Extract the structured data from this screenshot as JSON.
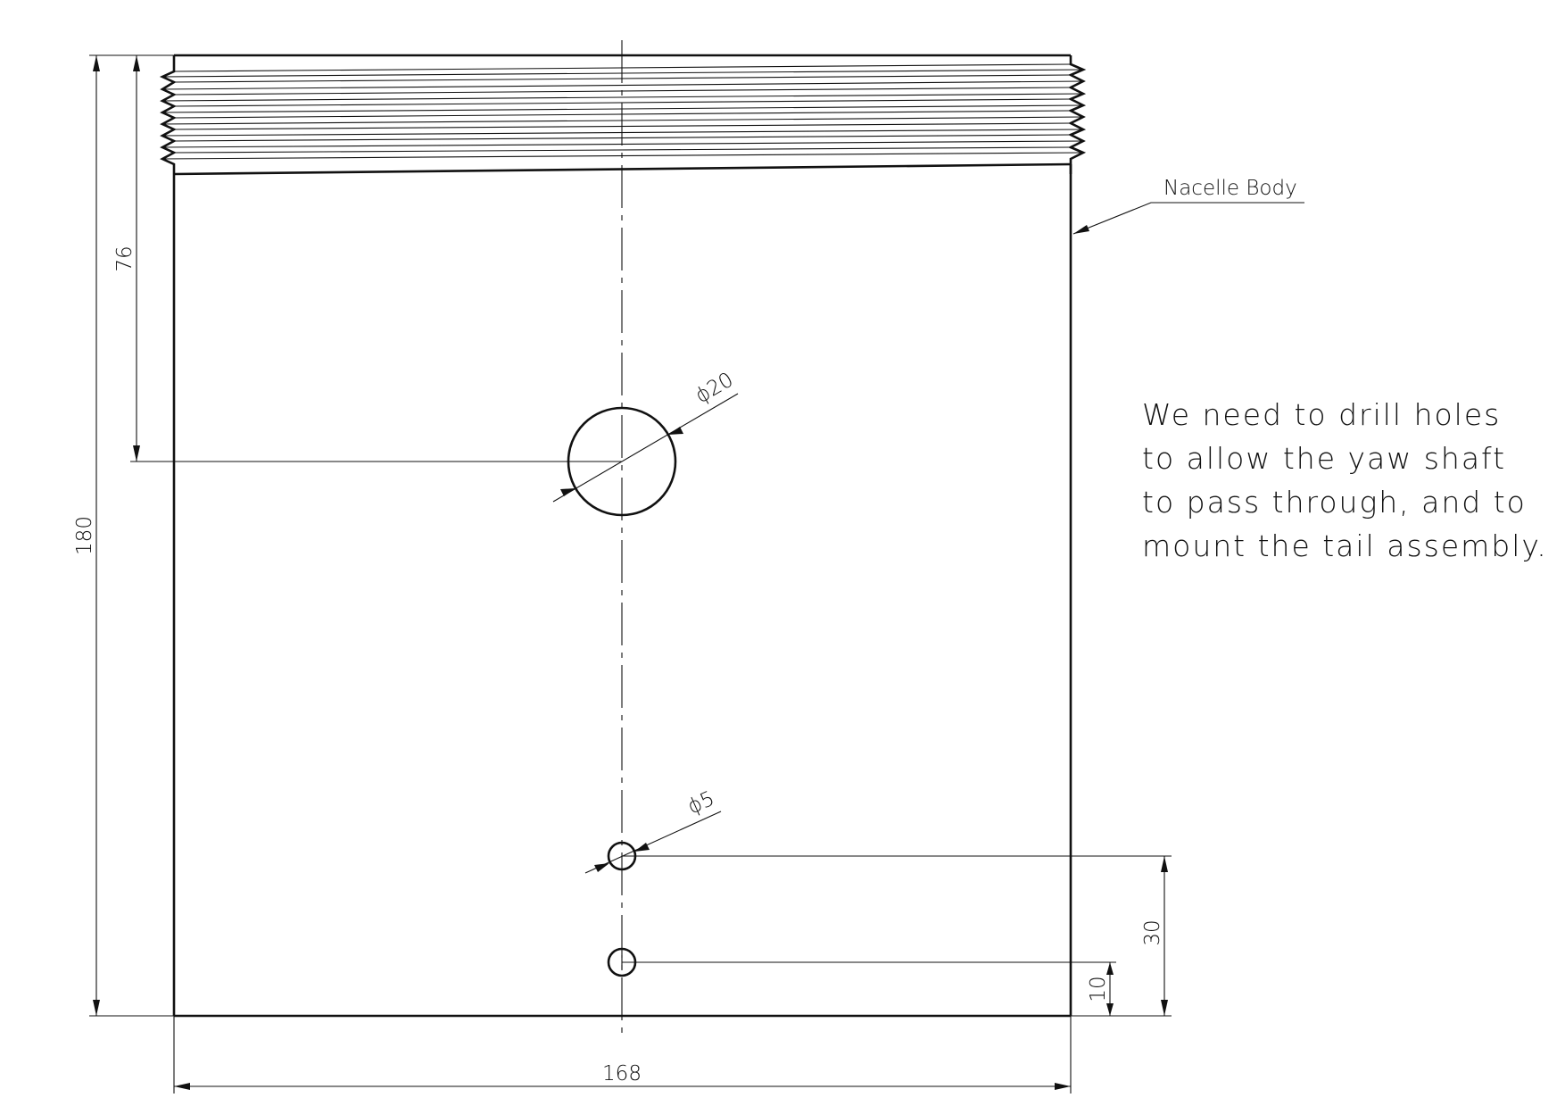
{
  "part_label": "Nacelle Body",
  "dimensions": {
    "overall_height": "180",
    "hole_center_from_top": "76",
    "overall_width": "168",
    "large_hole_diameter": "ϕ20",
    "small_hole_diameter": "ϕ5",
    "upper_small_hole_from_bottom": "30",
    "lower_small_hole_from_bottom": "10"
  },
  "note": {
    "lines": [
      "We need to drill holes",
      "to allow the yaw shaft",
      "to pass through, and to",
      "mount the tail assembly."
    ]
  }
}
